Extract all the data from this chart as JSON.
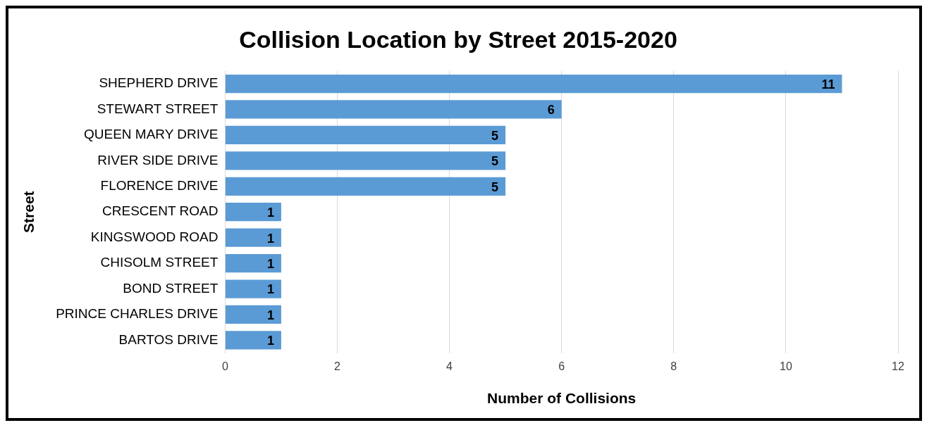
{
  "chart_data": {
    "type": "bar",
    "orientation": "horizontal",
    "title": "Collision Location by Street 2015-2020",
    "xlabel": "Number of Collisions",
    "ylabel": "Street",
    "categories": [
      "SHEPHERD DRIVE",
      "STEWART STREET",
      "QUEEN MARY DRIVE",
      "RIVER SIDE DRIVE",
      "FLORENCE DRIVE",
      "CRESCENT ROAD",
      "KINGSWOOD ROAD",
      "CHISOLM STREET",
      "BOND STREET",
      "PRINCE CHARLES DRIVE",
      "BARTOS DRIVE"
    ],
    "values": [
      11,
      6,
      5,
      5,
      5,
      1,
      1,
      1,
      1,
      1,
      1
    ],
    "color": "#5b9bd5",
    "xlim": [
      0,
      12
    ],
    "xticks": [
      0,
      2,
      4,
      6,
      8,
      10,
      12
    ],
    "grid": "x",
    "legend": false,
    "data_labels": true
  }
}
